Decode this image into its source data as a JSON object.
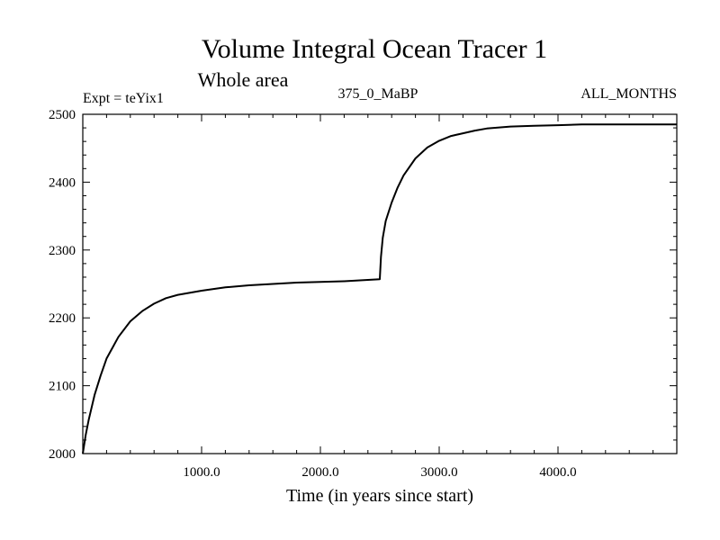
{
  "chart_data": {
    "type": "line",
    "title": "Volume Integral Ocean Tracer 1",
    "subtitle": "Whole area",
    "annotations": {
      "left": "Expt = teYix1",
      "center": "375_0_MaBP",
      "right": "ALL_MONTHS"
    },
    "xlabel": "Time (in years since start)",
    "ylabel": "",
    "xlim": [
      0,
      5000
    ],
    "ylim": [
      2000,
      2500
    ],
    "x_ticks": [
      1000,
      2000,
      3000,
      4000
    ],
    "x_tick_labels": [
      "1000.0",
      "2000.0",
      "3000.0",
      "4000.0"
    ],
    "y_ticks": [
      2000,
      2100,
      2200,
      2300,
      2400,
      2500
    ],
    "y_tick_labels": [
      "2000",
      "2100",
      "2200",
      "2300",
      "2400",
      "2500"
    ],
    "grid": false,
    "legend": "none",
    "series": [
      {
        "color": "#000000",
        "x": [
          0,
          25,
          50,
          100,
          150,
          200,
          300,
          400,
          500,
          600,
          700,
          800,
          1000,
          1200,
          1400,
          1600,
          1800,
          2000,
          2200,
          2400,
          2500,
          2500,
          2510,
          2525,
          2550,
          2600,
          2650,
          2700,
          2800,
          2900,
          3000,
          3100,
          3200,
          3300,
          3400,
          3600,
          3800,
          4000,
          4200,
          4400,
          4600,
          4800,
          5000
        ],
        "y": [
          2000,
          2028,
          2050,
          2087,
          2115,
          2140,
          2172,
          2195,
          2210,
          2221,
          2229,
          2234,
          2240,
          2245,
          2248,
          2250,
          2252,
          2253,
          2254,
          2256,
          2257,
          2257,
          2290,
          2318,
          2343,
          2370,
          2392,
          2410,
          2435,
          2451,
          2461,
          2468,
          2472,
          2476,
          2479,
          2482,
          2483,
          2484,
          2485,
          2485,
          2485,
          2485,
          2485
        ]
      }
    ]
  }
}
